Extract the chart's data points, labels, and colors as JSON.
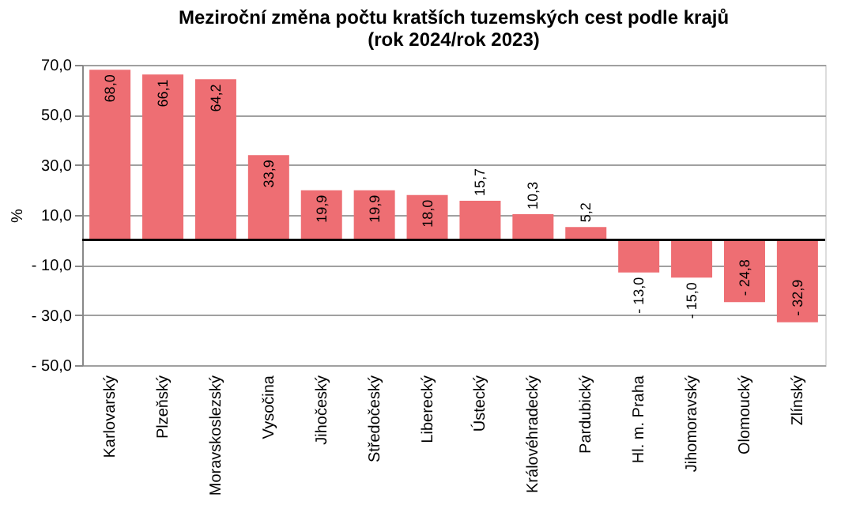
{
  "chart_data": {
    "type": "bar",
    "title": [
      "Meziroční změna počtu kratších tuzemských cest podle krajů",
      "(rok 2024/rok 2023)"
    ],
    "ylabel": "%",
    "categories": [
      "Karlovarský",
      "Plzeňský",
      "Moravskoslezský",
      "Vysočina",
      "Jihočeský",
      "Středočeský",
      "Liberecký",
      "Ústecký",
      "Královéhradecký",
      "Pardubický",
      "Hl. m. Praha",
      "Jihomoravský",
      "Olomoucký",
      "Zlínský"
    ],
    "values": [
      68.0,
      66.1,
      64.2,
      33.9,
      19.9,
      19.9,
      18.0,
      15.7,
      10.3,
      5.2,
      -13.0,
      -15.0,
      -24.8,
      -32.9
    ],
    "value_labels": [
      "68,0",
      "66,1",
      "64,2",
      "33,9",
      "19,9",
      "19,9",
      "18,0",
      "15,7",
      "10,3",
      "5,2",
      "- 13,0",
      "- 15,0",
      "- 24,8",
      "- 32,9"
    ],
    "color": "#ee6e73",
    "ylim": [
      -50,
      70
    ],
    "yticks": [
      {
        "value": 70,
        "label": "70,0"
      },
      {
        "value": 50,
        "label": "50,0"
      },
      {
        "value": 30,
        "label": "30,0"
      },
      {
        "value": 10,
        "label": "10,0"
      },
      {
        "value": -10,
        "label": "- 10,0"
      },
      {
        "value": -30,
        "label": "- 30,0"
      },
      {
        "value": -50,
        "label": "- 50,0"
      }
    ],
    "grid": "y"
  }
}
